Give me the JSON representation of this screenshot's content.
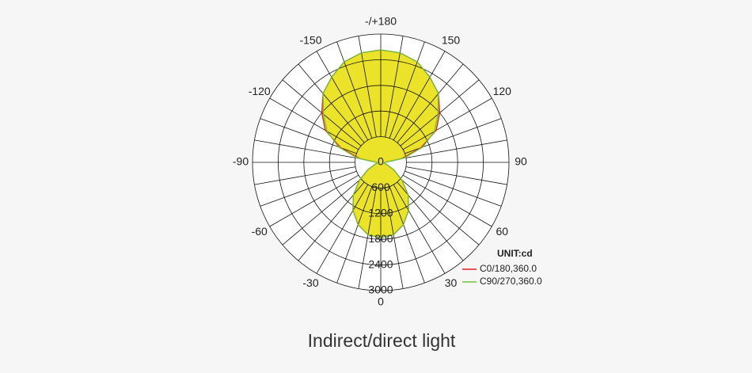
{
  "chart_data": {
    "type": "polar",
    "unit": "UNIT:cd",
    "title": "Indirect/direct light",
    "angles": [
      -180,
      -170,
      -160,
      -150,
      -140,
      -130,
      -120,
      -110,
      -100,
      -90,
      -80,
      -70,
      -60,
      -50,
      -40,
      -30,
      -20,
      -10,
      0,
      10,
      20,
      30,
      40,
      50,
      60,
      70,
      80,
      90,
      100,
      110,
      120,
      130,
      140,
      150,
      160,
      170,
      180
    ],
    "series": [
      {
        "name": "C0/180,360.0",
        "color": "#e02020",
        "fill": "#ebe22a",
        "values": [
          2630,
          2600,
          2500,
          2300,
          2100,
          1800,
          1500,
          1000,
          500,
          100,
          80,
          150,
          350,
          650,
          1000,
          1300,
          1550,
          1720,
          1760,
          1720,
          1550,
          1300,
          1000,
          650,
          350,
          150,
          80,
          100,
          500,
          1000,
          1500,
          1800,
          2100,
          2300,
          2500,
          2600,
          2630
        ]
      },
      {
        "name": "C90/270,360.0",
        "color": "#6cc43a",
        "values": [
          2630,
          2600,
          2500,
          2300,
          2100,
          1750,
          1450,
          1050,
          550,
          100,
          80,
          150,
          350,
          650,
          1000,
          1300,
          1550,
          1720,
          1760,
          1720,
          1550,
          1300,
          1000,
          650,
          350,
          150,
          80,
          100,
          550,
          1050,
          1450,
          1750,
          2100,
          2300,
          2500,
          2600,
          2630
        ]
      }
    ],
    "rlim": [
      0,
      3000
    ],
    "rticks": [
      0,
      600,
      1200,
      1800,
      2400,
      3000
    ],
    "angle_ticks": [
      0,
      30,
      60,
      90,
      120,
      150,
      {
        "value": 180,
        "label": "-/+180"
      },
      -150,
      -120,
      -90,
      -60,
      -30
    ]
  }
}
